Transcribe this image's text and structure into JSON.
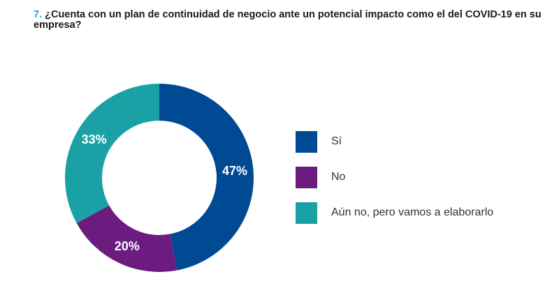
{
  "title": {
    "number": "7.",
    "text": "¿Cuenta con un plan de continuidad de negocio ante un potencial impacto como el del COVID-19 en su empresa?"
  },
  "chart_data": {
    "type": "pie",
    "donut": true,
    "slices": [
      {
        "label": "Sí",
        "value": 47,
        "value_label": "47%",
        "color": "#004a93"
      },
      {
        "label": "No",
        "value": 20,
        "value_label": "20%",
        "color": "#6c1b7f"
      },
      {
        "label": "Aún no, pero vamos a elaborarlo",
        "value": 33,
        "value_label": "33%",
        "color": "#1aa1a6"
      }
    ],
    "legend_position": "right"
  }
}
